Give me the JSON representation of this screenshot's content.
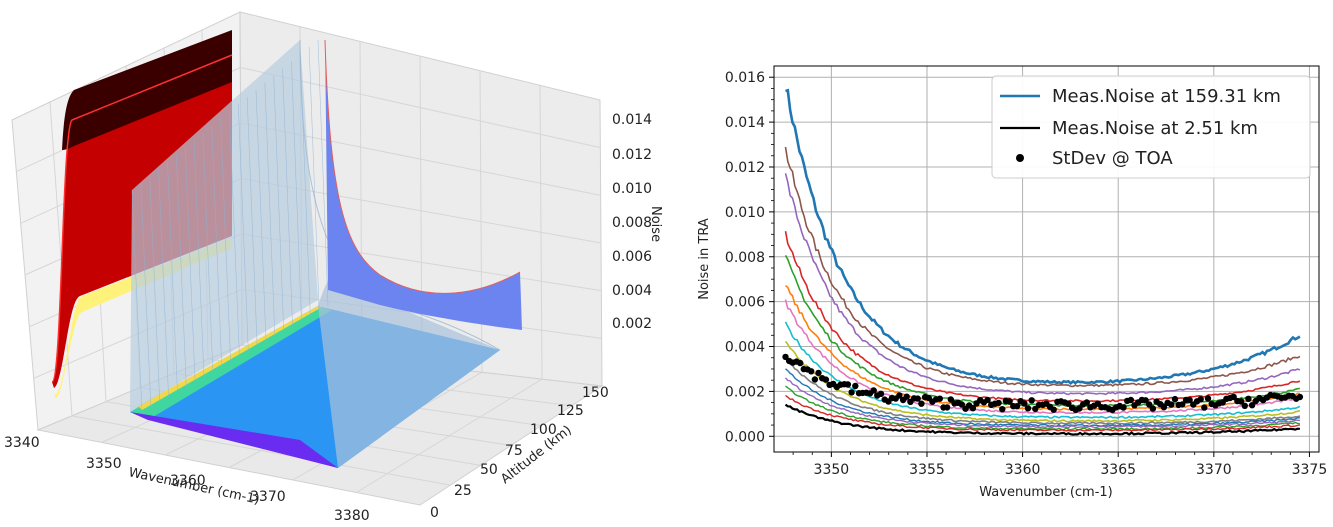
{
  "chart_data": [
    {
      "type": "surface3d",
      "xlabel": "Wavenumber (cm-1)",
      "ylabel": "Altitude (km)",
      "zlabel": "Noise",
      "x_ticks": [
        "3340",
        "3350",
        "3360",
        "3370",
        "3380"
      ],
      "y_ticks": [
        "0",
        "25",
        "50",
        "75",
        "100",
        "125",
        "150"
      ],
      "z_ticks": [
        "0.002",
        "0.004",
        "0.006",
        "0.008",
        "0.010",
        "0.012",
        "0.014"
      ],
      "colors": {
        "back_projection": [
          "#4a0000",
          "#b00000",
          "#ff2020",
          "#fff27a"
        ],
        "surface": "#b7cde0",
        "right_projection": "#6c84f0",
        "floor_projection": [
          "#6a2cf0",
          "#2a8cf5",
          "#3fe08a",
          "#f0d84a"
        ]
      }
    },
    {
      "type": "line",
      "xlabel": "Wavenumber (cm-1)",
      "ylabel": "Noise in TRA",
      "xlim": [
        3347,
        3375.5
      ],
      "ylim": [
        -0.0007,
        0.0165
      ],
      "xticks": [
        3350,
        3355,
        3360,
        3365,
        3370,
        3375
      ],
      "yticks": [
        0.0,
        0.002,
        0.004,
        0.006,
        0.008,
        0.01,
        0.012,
        0.014,
        0.016
      ],
      "xtick_labels": [
        "3350",
        "3355",
        "3360",
        "3365",
        "3370",
        "3375"
      ],
      "ytick_labels": [
        "0.000",
        "0.002",
        "0.004",
        "0.006",
        "0.008",
        "0.010",
        "0.012",
        "0.014",
        "0.016"
      ],
      "grid": true,
      "legend_position": "top-right",
      "legend": [
        {
          "label": "Meas.Noise at 159.31 km",
          "color": "#1f77b4",
          "kind": "line"
        },
        {
          "label": "Meas.Noise at 2.51 km",
          "color": "#000000",
          "kind": "line"
        },
        {
          "label": "StDev @ TOA",
          "color": "#000000",
          "kind": "marker"
        }
      ],
      "x_start": 3347.6,
      "x_end": 3374.5,
      "series": [
        {
          "name": "Meas.Noise at 159.31 km",
          "color": "#1f77b4",
          "width": 2.6,
          "start": 0.0157,
          "min": 0.00225,
          "end": 0.0045
        },
        {
          "color": "#8c564b",
          "width": 1.6,
          "start": 0.0128,
          "min": 0.00215,
          "end": 0.0036
        },
        {
          "color": "#9467bd",
          "width": 1.6,
          "start": 0.0116,
          "min": 0.0018,
          "end": 0.003
        },
        {
          "color": "#d62728",
          "width": 1.6,
          "start": 0.009,
          "min": 0.0015,
          "end": 0.0025
        },
        {
          "color": "#2ca02c",
          "width": 1.6,
          "start": 0.008,
          "min": 0.0013,
          "end": 0.0021
        },
        {
          "color": "#ff7f0e",
          "width": 1.6,
          "start": 0.0068,
          "min": 0.00115,
          "end": 0.0019
        },
        {
          "color": "#e377c2",
          "width": 1.6,
          "start": 0.006,
          "min": 0.001,
          "end": 0.0017
        },
        {
          "color": "#17becf",
          "width": 1.6,
          "start": 0.005,
          "min": 0.0008,
          "end": 0.0013
        },
        {
          "color": "#bcbd22",
          "width": 1.6,
          "start": 0.0042,
          "min": 0.00065,
          "end": 0.0011
        },
        {
          "color": "#7f7f7f",
          "width": 1.6,
          "start": 0.0035,
          "min": 0.00055,
          "end": 0.0009
        },
        {
          "color": "#1f77b4",
          "width": 1.4,
          "start": 0.003,
          "min": 0.00045,
          "end": 0.0008
        },
        {
          "color": "#9467bd",
          "width": 1.4,
          "start": 0.0026,
          "min": 0.0004,
          "end": 0.0007
        },
        {
          "color": "#2ca02c",
          "width": 1.4,
          "start": 0.0022,
          "min": 0.0003,
          "end": 0.0006
        },
        {
          "color": "#d62728",
          "width": 1.4,
          "start": 0.0018,
          "min": 0.00025,
          "end": 0.0005
        },
        {
          "name": "Meas.Noise at 2.51 km",
          "color": "#000000",
          "width": 2.2,
          "start": 0.0014,
          "min": 0.0001,
          "end": 0.00035
        }
      ],
      "scatter": {
        "name": "StDev @ TOA",
        "color": "#000000",
        "start": 0.0037,
        "min": 0.00135,
        "end": 0.0018
      }
    }
  ]
}
